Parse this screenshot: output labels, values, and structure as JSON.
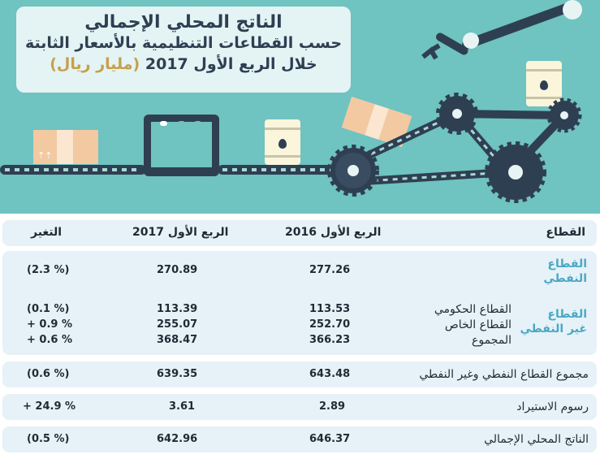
{
  "title": {
    "line1": "الناتج المحلي الإجمالي",
    "line2": "حسب القطاعات التنظيمية بالأسعار الثابتة",
    "line3_main": "خلال الربع الأول 2017",
    "line3_unit": "(مليار ريال)"
  },
  "colors": {
    "background": "#6fc3c1",
    "title_box": "#e4f3f4",
    "panel": "#e6f2f7",
    "dark": "#2f3f52",
    "accent_label": "#4aa8c5",
    "unit_gold": "#c6a04a"
  },
  "table": {
    "headers": {
      "sector": "القطاع",
      "q1_2016": "الربع الأول 2016",
      "q1_2017": "الربع الأول 2017",
      "change": "التغير"
    },
    "oil": {
      "label_line1": "القطاع",
      "label_line2": "النفطي",
      "q1_2016": "277.26",
      "q1_2017": "270.89",
      "change": "(2.3 %)"
    },
    "non_oil": {
      "label_line1": "القطاع",
      "label_line2": "غير النفطي",
      "rows": [
        {
          "name": "القطاع الحكومي",
          "q1_2016": "113.53",
          "q1_2017": "113.39",
          "change": "(0.1 %)"
        },
        {
          "name": "القطاع الخاص",
          "q1_2016": "252.70",
          "q1_2017": "255.07",
          "change": "+ 0.9 %"
        },
        {
          "name": "المجموع",
          "q1_2016": "366.23",
          "q1_2017": "368.47",
          "change": "+ 0.6 %"
        }
      ]
    },
    "total_oil_nonoil": {
      "label": "مجموع القطاع النفطي وغير النفطي",
      "q1_2016": "643.48",
      "q1_2017": "639.35",
      "change": "(0.6 %)"
    },
    "import_duties": {
      "label": "رسوم الاستيراد",
      "q1_2016": "2.89",
      "q1_2017": "3.61",
      "change": "+ 24.9 %"
    },
    "gdp": {
      "label": "الناتج المحلي الإجمالي",
      "q1_2016": "646.37",
      "q1_2017": "642.96",
      "change": "(0.5 %)"
    }
  },
  "icons": [
    "cardboard-box-icon",
    "oil-barrel-icon",
    "gear-icon",
    "robotic-arm-icon",
    "machine-icon"
  ]
}
